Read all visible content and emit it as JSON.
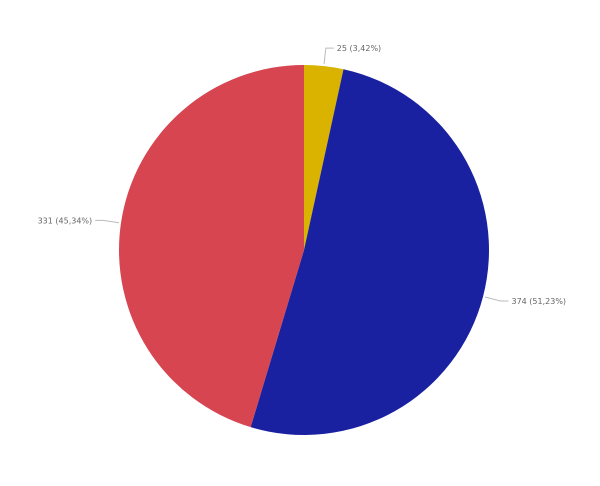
{
  "chart_data": {
    "type": "pie",
    "start_angle": "top",
    "direction": "clockwise",
    "slices": [
      {
        "value": 25,
        "percent": 3.42,
        "label": "25 (3,42%)",
        "color": "#D9B300"
      },
      {
        "value": 374,
        "percent": 51.23,
        "label": "374 (51,23%)",
        "color": "#1A21A0"
      },
      {
        "value": 331,
        "percent": 45.34,
        "label": "331 (45,34%)",
        "color": "#D64550"
      }
    ]
  }
}
